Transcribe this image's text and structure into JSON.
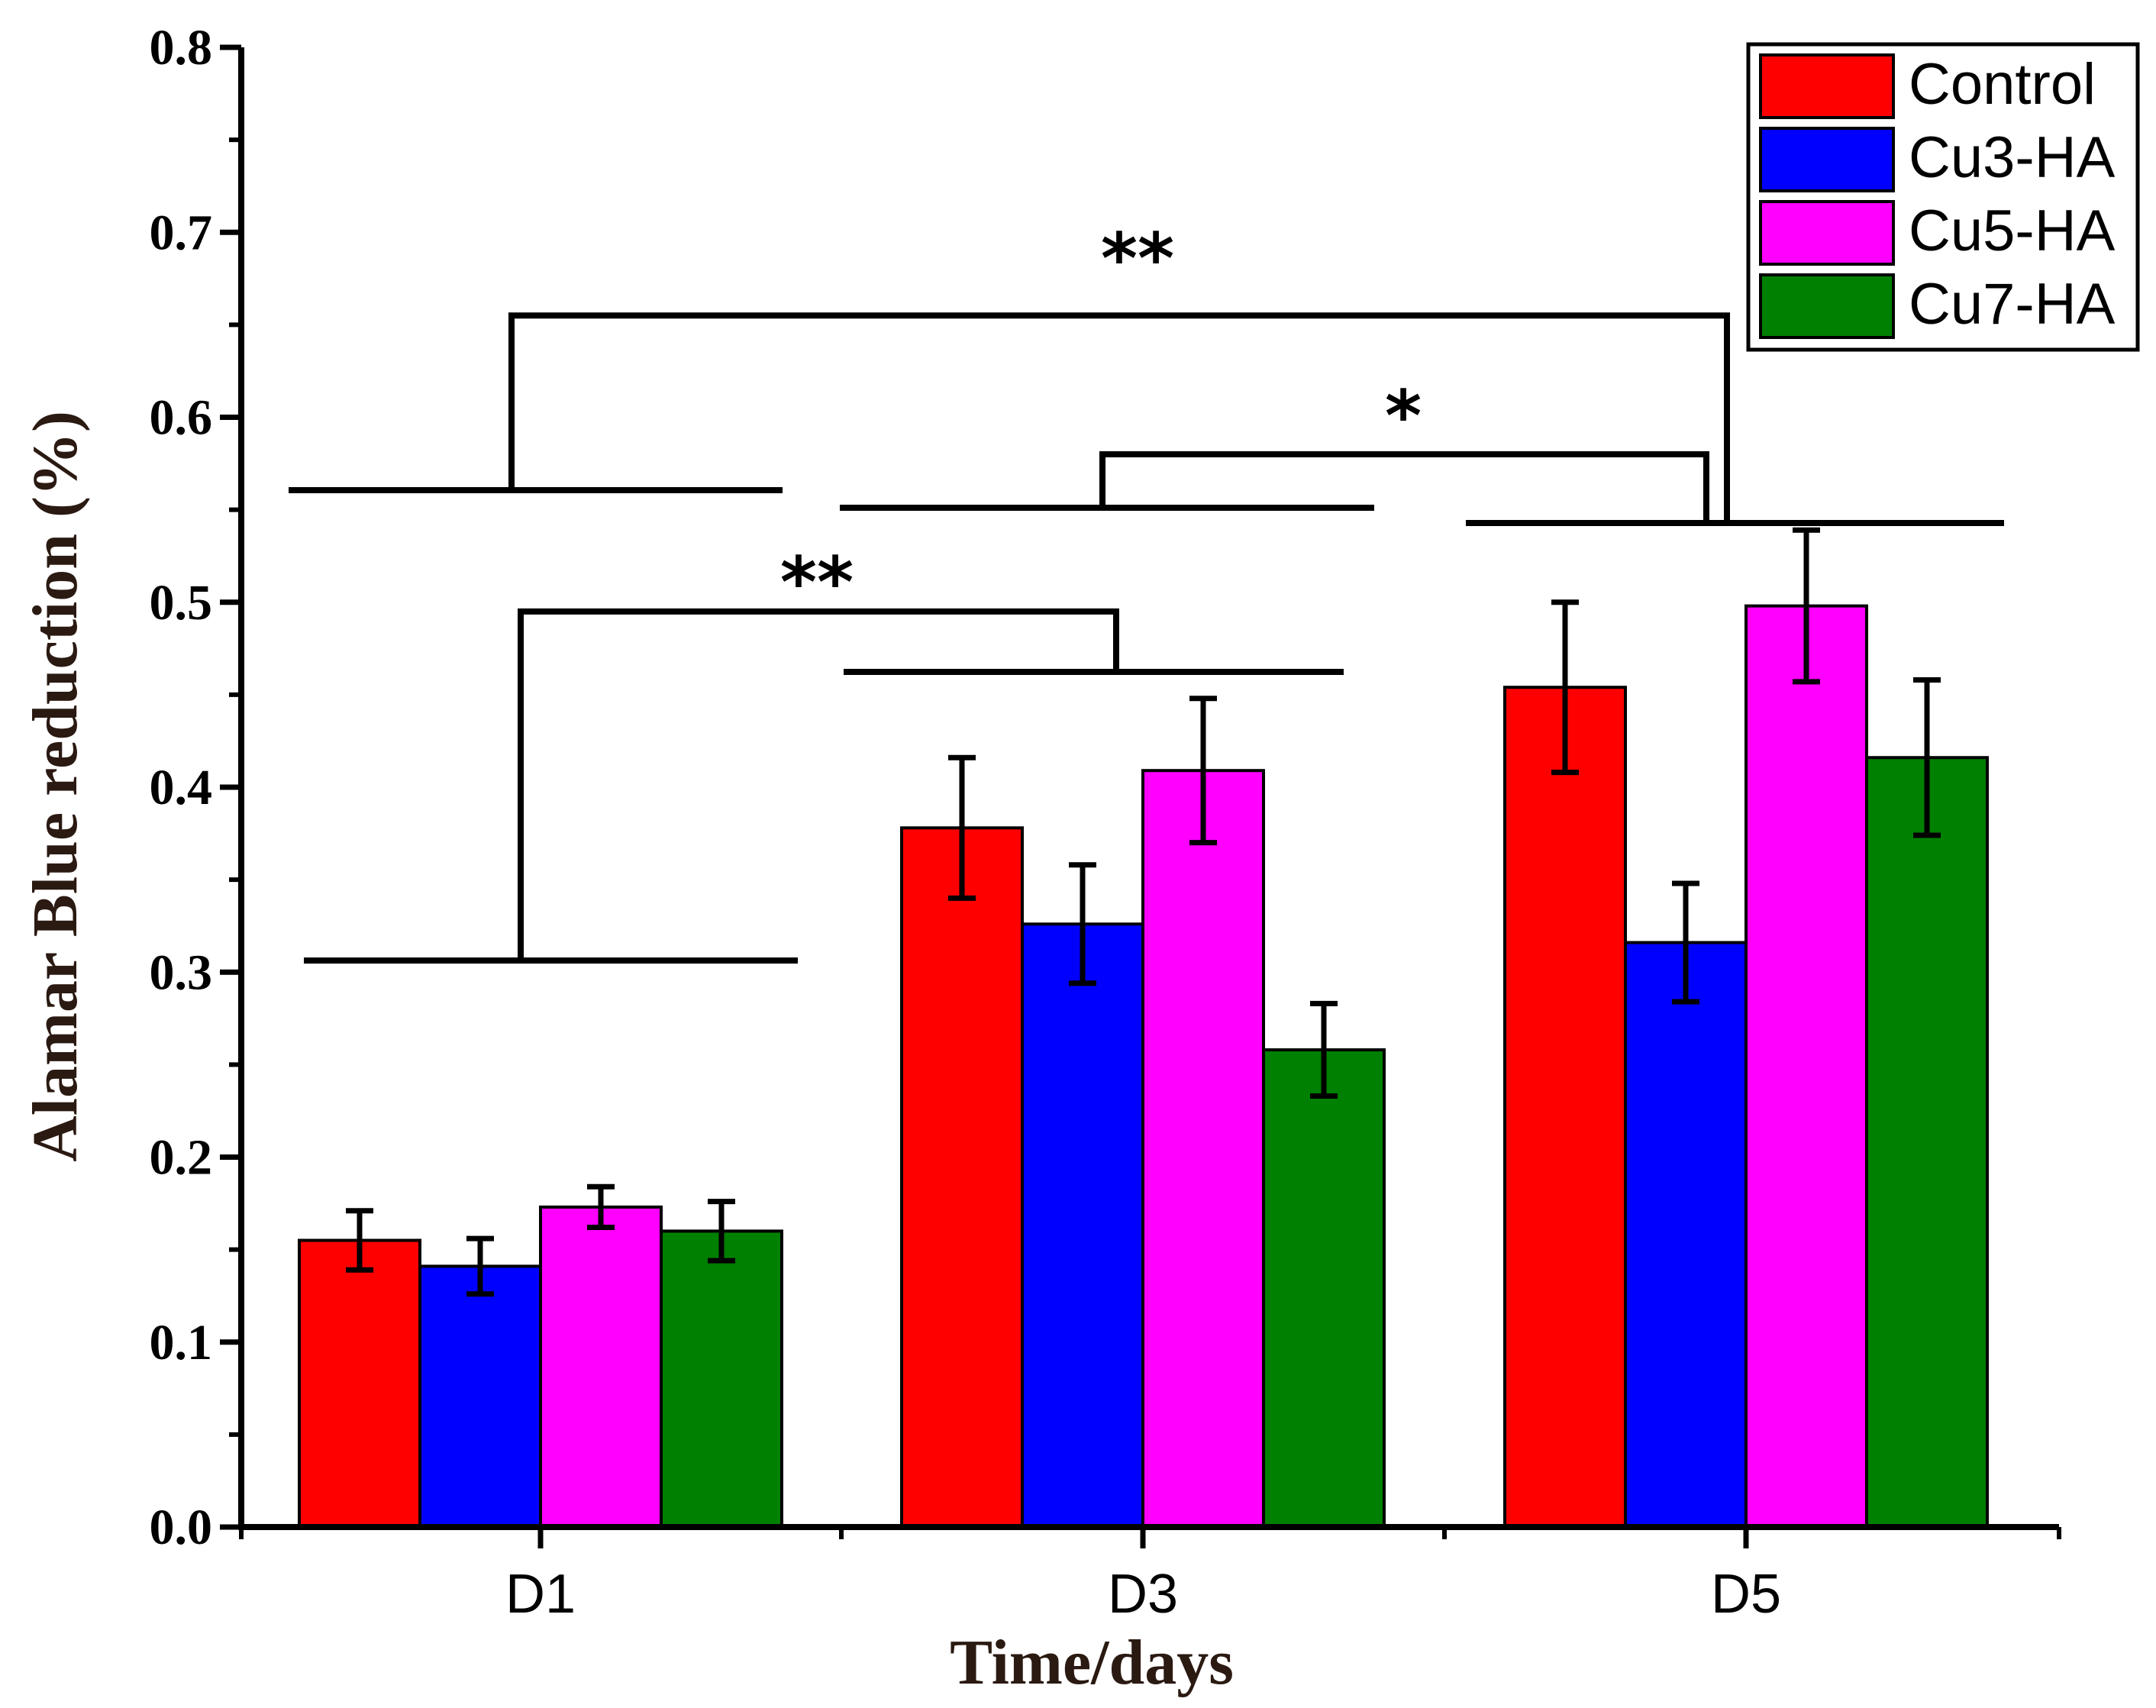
{
  "chart_data": {
    "type": "bar",
    "title": "",
    "xlabel": "Time/days",
    "ylabel": "Alamar Blue reduction (%)",
    "ylim": [
      0,
      0.8
    ],
    "yticks": [
      "0.0",
      "0.1",
      "0.2",
      "0.3",
      "0.4",
      "0.5",
      "0.6",
      "0.7",
      "0.8"
    ],
    "categories": [
      "D1",
      "D3",
      "D5"
    ],
    "series": [
      {
        "name": "Control",
        "color": "#ff0000",
        "values": [
          0.155,
          0.378,
          0.454
        ],
        "errors": [
          0.016,
          0.038,
          0.046
        ]
      },
      {
        "name": "Cu3-HA",
        "color": "#0000ff",
        "values": [
          0.141,
          0.326,
          0.316
        ],
        "errors": [
          0.015,
          0.032,
          0.032
        ]
      },
      {
        "name": "Cu5-HA",
        "color": "#ff00ff",
        "values": [
          0.173,
          0.409,
          0.498
        ],
        "errors": [
          0.011,
          0.039,
          0.041
        ]
      },
      {
        "name": "Cu7-HA",
        "color": "#008000",
        "values": [
          0.16,
          0.258,
          0.416
        ],
        "errors": [
          0.016,
          0.025,
          0.042
        ]
      }
    ],
    "legend_position": "top-right",
    "significance": [
      {
        "label": "**",
        "from": "D1",
        "to": "D5",
        "level": 0.655
      },
      {
        "label": "*",
        "from": "D3",
        "to": "D5",
        "level": 0.58
      },
      {
        "label": "**",
        "from": "D1",
        "to": "D3",
        "level": 0.495
      }
    ]
  }
}
